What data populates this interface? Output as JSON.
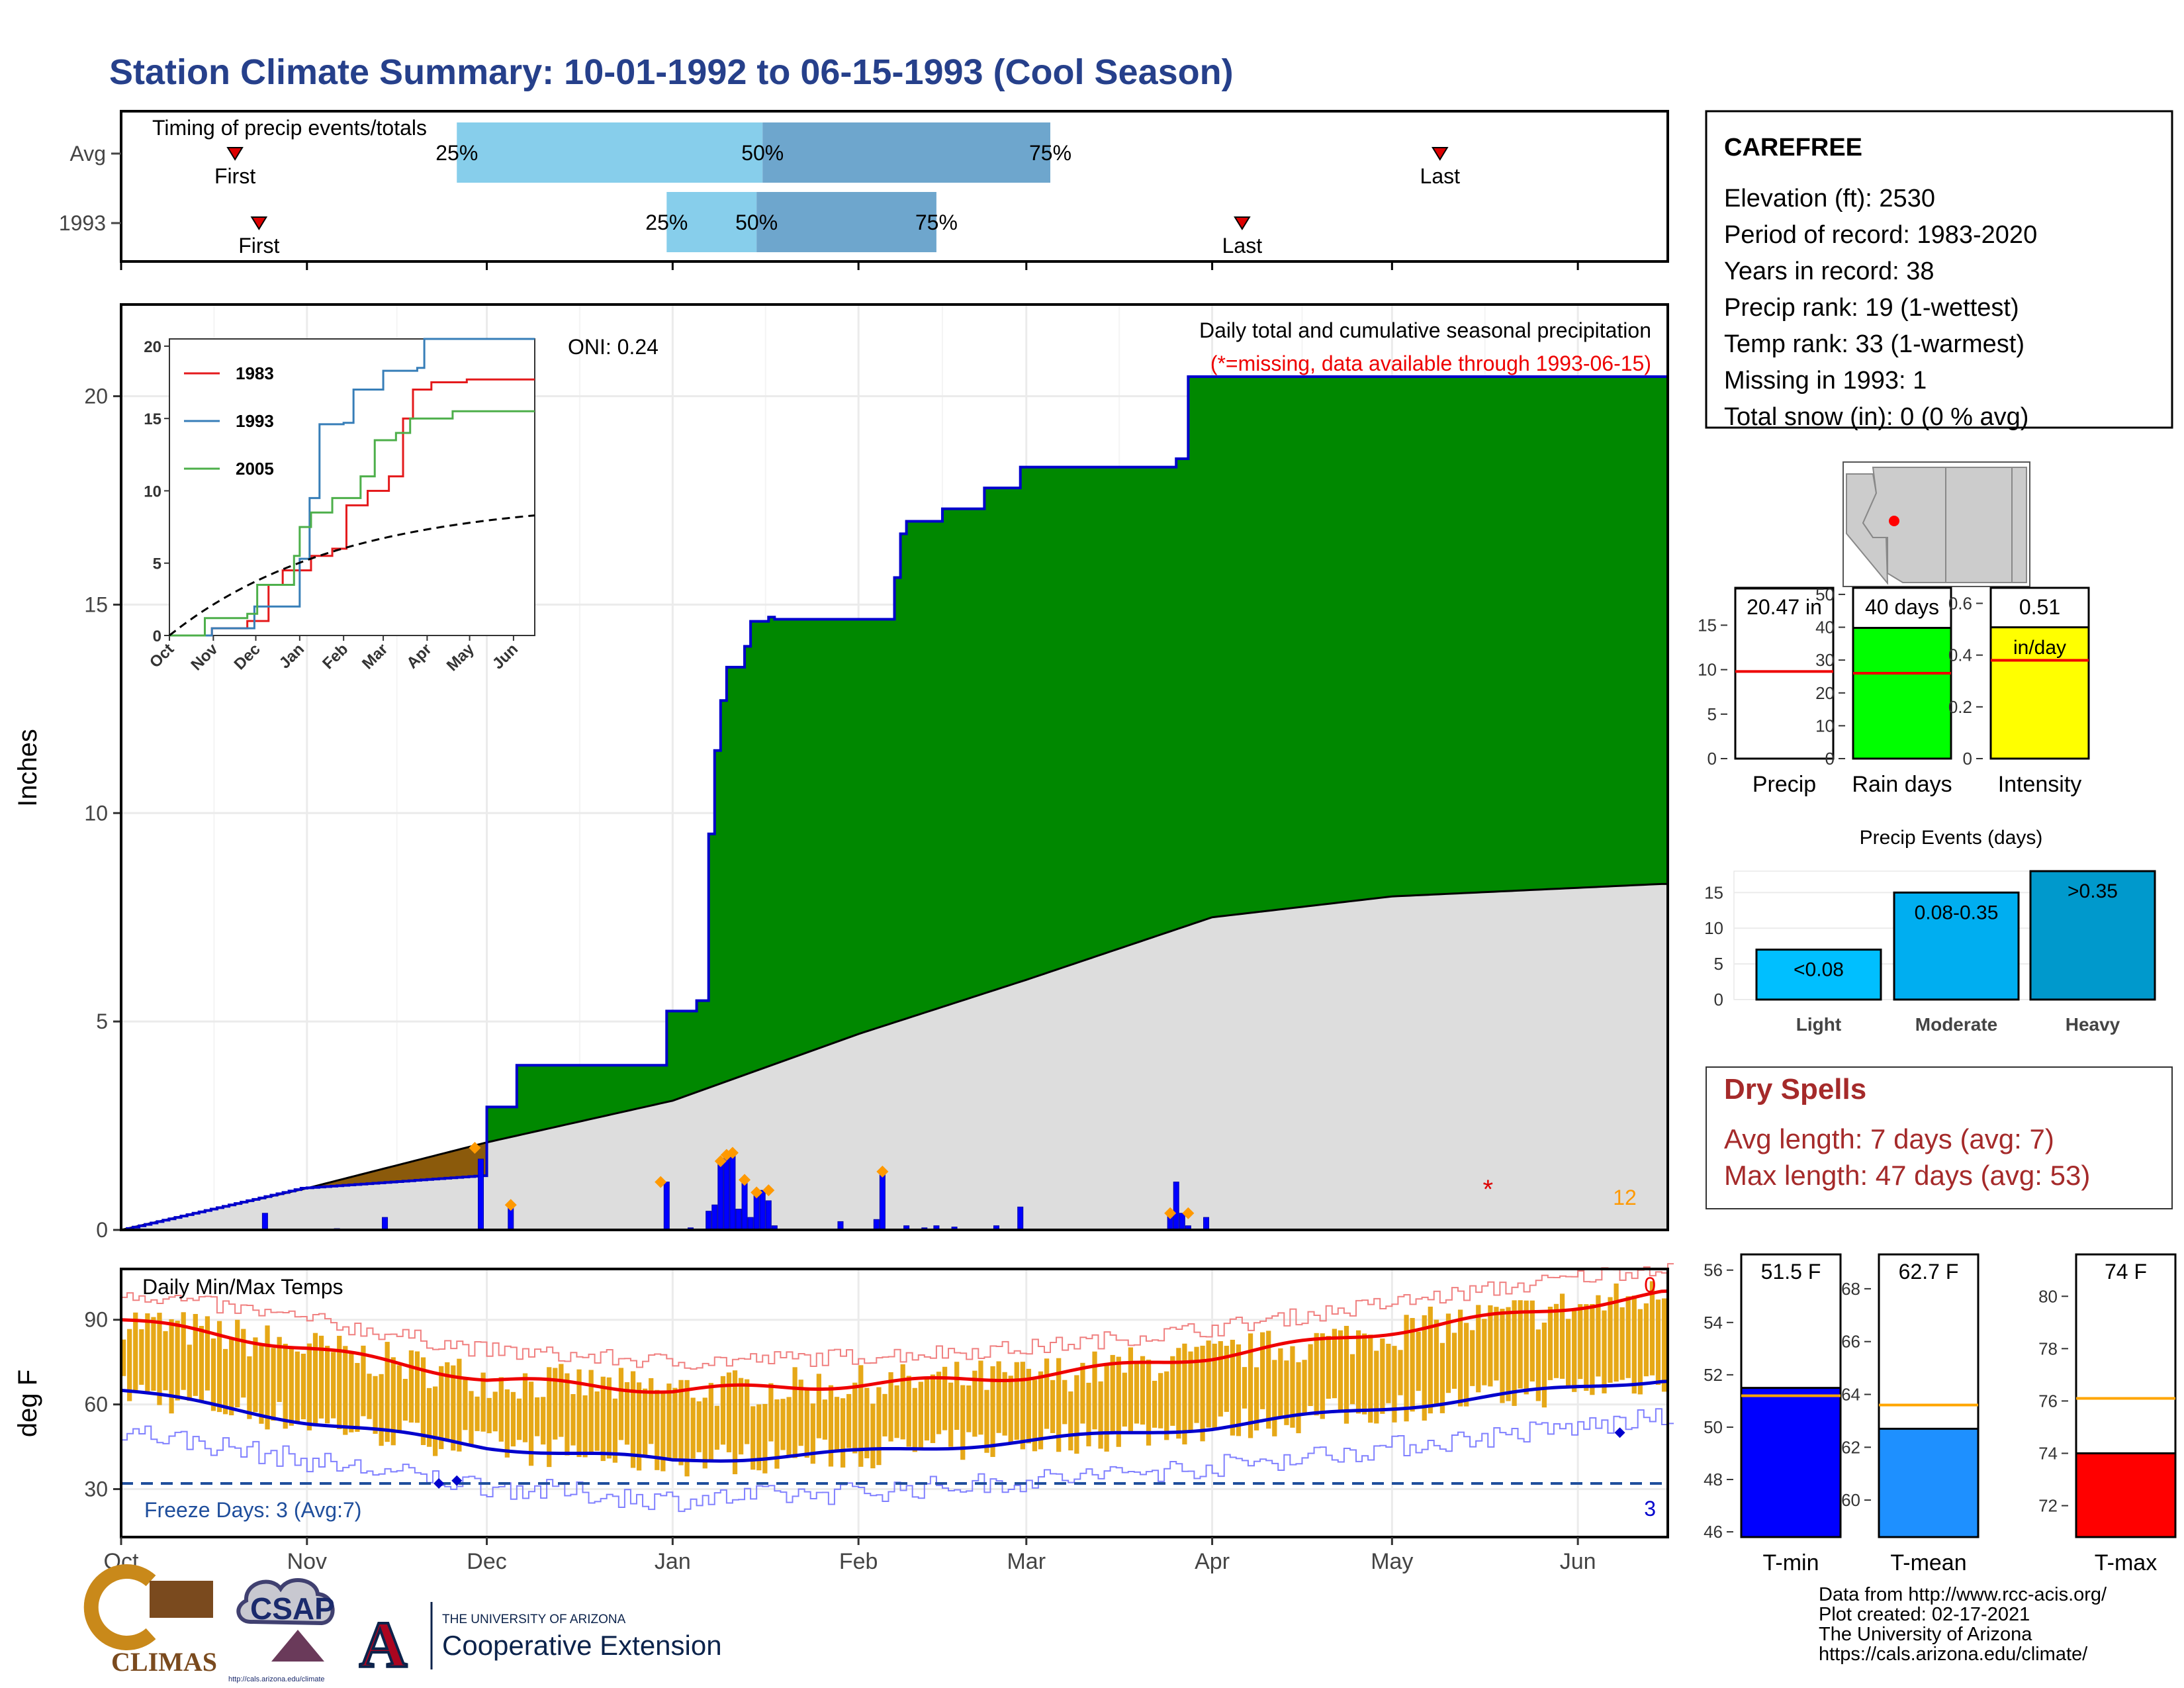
{
  "page": {
    "title": "Station Climate Summary: 10-01-1992 to 06-15-1993 (Cool Season)",
    "title_color": "#26408b"
  },
  "months": [
    "Oct",
    "Nov",
    "Dec",
    "Jan",
    "Feb",
    "Mar",
    "Apr",
    "May",
    "Jun"
  ],
  "timing": {
    "heading": "Timing of precip events/totals",
    "rows": [
      {
        "label": "Avg",
        "first_day": 19,
        "q25_day": 56,
        "q50_day": 107,
        "q75_day": 155,
        "last_day": 220,
        "q25_label": "25%",
        "q50_label": "50%",
        "q75_label": "75%",
        "first_label": "First",
        "last_label": "Last"
      },
      {
        "label": "1993",
        "first_day": 23,
        "q25_day": 91,
        "q50_day": 106,
        "q75_day": 136,
        "last_day": 187,
        "q25_label": "25%",
        "q50_label": "50%",
        "q75_label": "75%",
        "first_label": "First",
        "last_label": "Last"
      }
    ],
    "colors": {
      "light": "#87ceeb",
      "dark": "#6ea6cd",
      "marker": "#dd0000"
    }
  },
  "precip_panel": {
    "ylabel": "Inches",
    "yticks": [
      0,
      5,
      10,
      15,
      20
    ],
    "ylim": [
      0,
      22.2
    ],
    "oni": "ONI: 0.24",
    "legend_title": "Daily total and cumulative seasonal precipitation",
    "missing_note": "(*=missing, data available through 1993-06-15)",
    "missing_marker": "*",
    "event_count": "12",
    "colors": {
      "above": "#008800",
      "below": "#8b5a0b",
      "normal": "#dddddd",
      "line": "#0000cc",
      "bars": "#0000ff",
      "dots": "#ff9900"
    }
  },
  "inset": {
    "yticks": [
      0,
      5,
      10,
      15,
      20
    ],
    "ylim": [
      0,
      20.5
    ],
    "months": [
      "Oct",
      "Nov",
      "Dec",
      "Jan",
      "Feb",
      "Mar",
      "Apr",
      "May",
      "Jun"
    ],
    "legend": [
      {
        "name": "1983",
        "color": "#e41a1c"
      },
      {
        "name": "1993",
        "color": "#377eb8"
      },
      {
        "name": "2005",
        "color": "#4daf4a"
      }
    ]
  },
  "temp_panel": {
    "ylabel": "deg F",
    "yticks": [
      30,
      60,
      90
    ],
    "ylim": [
      13,
      108
    ],
    "heading": "Daily Min/Max Temps",
    "freeze_label": "Freeze Days: 3 (Avg:7)",
    "freeze_count": "3",
    "record_count": "0",
    "colors": {
      "bars": "#e6a817",
      "max_avg": "#ee0000",
      "min_avg": "#0000cc",
      "max_record": "#f08080",
      "min_record": "#8080ff",
      "freeze": "#1f4e9c"
    }
  },
  "station": {
    "name": "CAREFREE",
    "lines": [
      "Elevation (ft): 2530",
      "Period of record: 1983-2020",
      "Years in record: 38",
      "Precip rank: 19 (1-wettest)",
      "Temp rank: 33 (1-warmest)",
      "Missing in 1993: 1",
      "Total snow (in): 0 (0 % avg)"
    ]
  },
  "gauges": [
    {
      "label": "Precip",
      "value_label": "20.47 in",
      "value": 20.47,
      "avg": 9.8,
      "ymax": 19.2,
      "ticks": [
        0,
        5,
        10,
        15
      ],
      "color": "#ffffff"
    },
    {
      "label": "Rain days",
      "value_label": "40 days",
      "value": 40,
      "avg": 26,
      "ymax": 52,
      "ticks": [
        0,
        10,
        20,
        30,
        40,
        50
      ],
      "color": "#00ff00"
    },
    {
      "label": "Intensity",
      "value_label": "0.51",
      "value_label2": "in/day",
      "value": 0.51,
      "avg": 0.38,
      "ymax": 0.66,
      "ticks": [
        0.0,
        0.2,
        0.4,
        0.6
      ],
      "color": "#ffff00"
    }
  ],
  "events": {
    "title": "Precip Events (days)",
    "yticks": [
      0,
      5,
      10,
      15
    ],
    "bars": [
      {
        "label": "Light",
        "range": "<0.08",
        "value": 7,
        "color": "#00bfff"
      },
      {
        "label": "Moderate",
        "range": "0.08-0.35",
        "value": 15,
        "color": "#00aef0"
      },
      {
        "label": "Heavy",
        "range": ">0.35",
        "value": 18,
        "color": "#0099cc"
      }
    ]
  },
  "dry_spells": {
    "title": "Dry Spells",
    "lines": [
      "Avg length: 7 days (avg: 7)",
      "Max length: 47 days (avg: 53)"
    ],
    "color": "#a52a2a"
  },
  "temp_gauges": [
    {
      "label": "T-min",
      "value_label": "51.5 F",
      "value": 51.5,
      "avg": 51.2,
      "ymin": 45.8,
      "ymax": 56.6,
      "ticks": [
        46,
        48,
        50,
        52,
        54,
        56
      ],
      "color": "#0000ff"
    },
    {
      "label": "T-mean",
      "value_label": "62.7 F",
      "value": 62.7,
      "avg": 63.6,
      "ymin": 58.6,
      "ymax": 69.3,
      "ticks": [
        60,
        62,
        64,
        66,
        68
      ],
      "color": "#1e90ff"
    },
    {
      "label": "T-max",
      "value_label": "74 F",
      "value": 74,
      "avg": 76.1,
      "ymin": 70.8,
      "ymax": 81.6,
      "ticks": [
        72,
        74,
        76,
        78,
        80
      ],
      "color": "#ff0000"
    }
  ],
  "credits": [
    "Data from http://www.rcc-acis.org/",
    "Plot created: 02-17-2021",
    "The University of Arizona",
    "https://cals.arizona.edu/climate/"
  ],
  "logos": {
    "climas": "CLIMAS",
    "csap": "CSAP",
    "csap_url": "http://cals.arizona.edu/climate",
    "ua_letter": "A",
    "ua_line1": "THE UNIVERSITY OF ARIZONA",
    "ua_line2": "Cooperative Extension"
  },
  "chart_data": [
    {
      "type": "area",
      "title": "Daily total and cumulative seasonal precipitation",
      "ylabel": "Inches",
      "ylim": [
        0,
        22.2
      ],
      "series": [
        {
          "name": "1993",
          "x": [
            "1992-10-01",
            "1992-10-31",
            "1992-11-30",
            "1992-12-01",
            "1992-12-06",
            "1992-12-31",
            "1993-01-05",
            "1993-01-07",
            "1993-01-08",
            "1993-01-09",
            "1993-01-10",
            "1993-01-13",
            "1993-01-14",
            "1993-01-17",
            "1993-01-18",
            "1993-02-07",
            "1993-02-08",
            "1993-02-09",
            "1993-02-15",
            "1993-02-22",
            "1993-02-28",
            "1993-03-26",
            "1993-03-28",
            "1993-06-15"
          ],
          "values": [
            0.0,
            1.0,
            1.3,
            2.95,
            3.95,
            5.25,
            5.5,
            9.5,
            11.5,
            12.7,
            13.5,
            14.0,
            14.6,
            14.7,
            14.65,
            15.65,
            16.7,
            17.0,
            17.3,
            17.8,
            18.3,
            18.5,
            20.47,
            20.47
          ]
        },
        {
          "name": "normal",
          "x": [
            "1992-10-01",
            "1992-11-01",
            "1992-12-01",
            "1993-01-01",
            "1993-02-01",
            "1993-03-01",
            "1993-04-01",
            "1993-05-01",
            "1993-06-15"
          ],
          "values": [
            0.0,
            1.0,
            2.1,
            3.1,
            4.7,
            6.0,
            7.5,
            8.0,
            8.3
          ]
        }
      ]
    },
    {
      "type": "line",
      "title": "Daily Min/Max Temps",
      "ylabel": "deg F",
      "ylim": [
        13,
        108
      ],
      "series": [
        {
          "name": "avg max",
          "x": [
            "1992-10-01",
            "1992-11-01",
            "1992-12-01",
            "1993-01-01",
            "1993-02-01",
            "1993-03-01",
            "1993-04-01",
            "1993-05-01",
            "1993-06-01",
            "1993-06-15"
          ],
          "values": [
            90,
            80,
            69,
            65,
            67,
            70,
            77,
            86,
            95,
            99
          ]
        },
        {
          "name": "avg min",
          "x": [
            "1992-10-01",
            "1992-11-01",
            "1992-12-01",
            "1993-01-01",
            "1993-02-01",
            "1993-03-01",
            "1993-04-01",
            "1993-05-01",
            "1993-06-01",
            "1993-06-15"
          ],
          "values": [
            65,
            54,
            45,
            40,
            43,
            47,
            52,
            59,
            66,
            69
          ]
        }
      ]
    },
    {
      "type": "bar",
      "title": "Precip Events (days)",
      "categories": [
        "Light",
        "Moderate",
        "Heavy"
      ],
      "values": [
        7,
        15,
        18
      ]
    }
  ]
}
